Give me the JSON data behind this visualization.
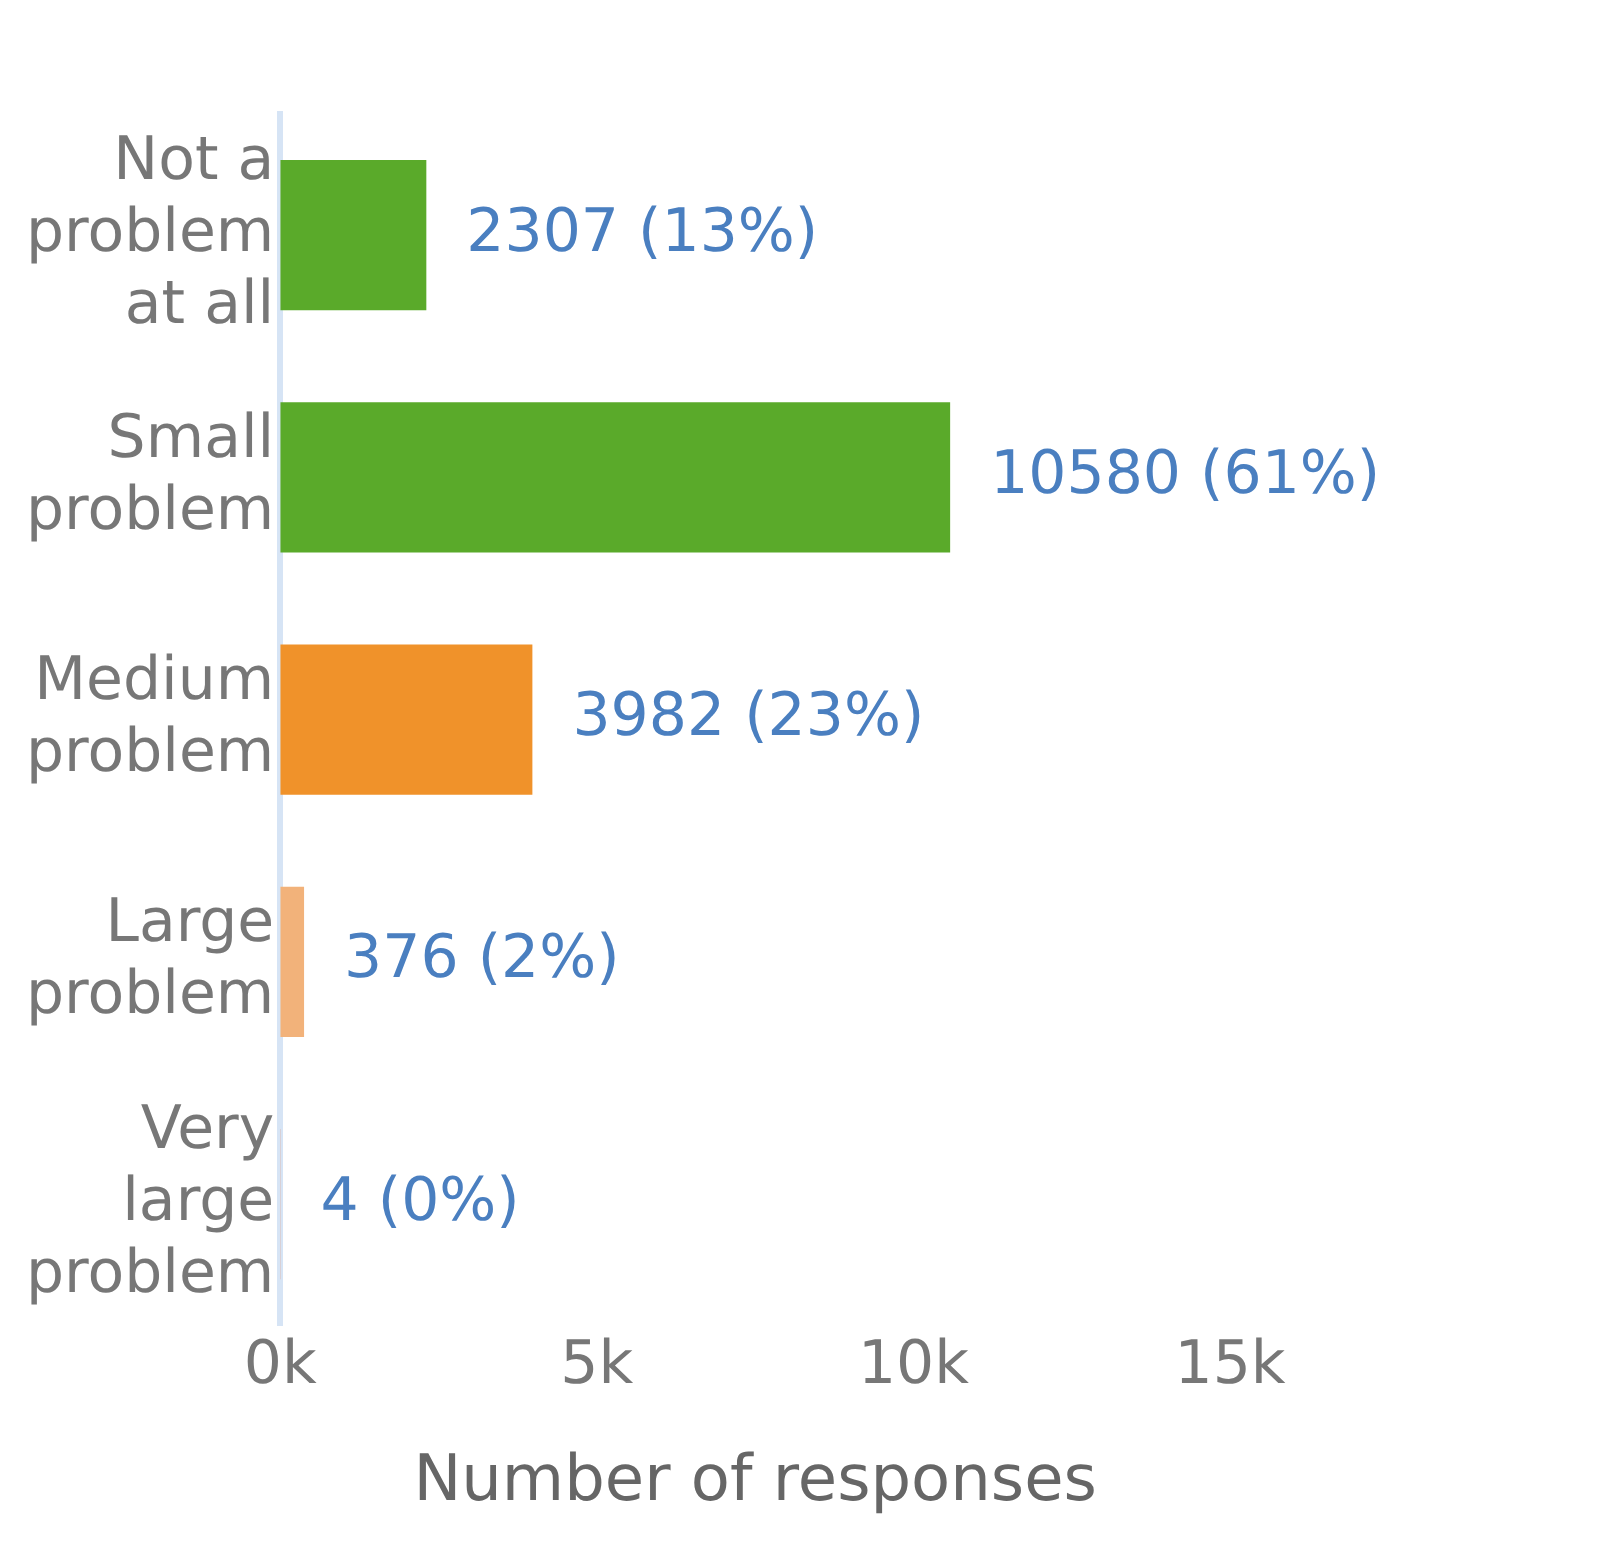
{
  "chart_data": {
    "type": "bar",
    "orientation": "horizontal",
    "xlabel": "Number of responses",
    "categories": [
      "Not a problem at all",
      "Small problem",
      "Medium problem",
      "Large problem",
      "Very large problem"
    ],
    "values": [
      2307,
      10580,
      3982,
      376,
      4
    ],
    "colors": [
      "#5aaa2a",
      "#5aaa2a",
      "#f0922a",
      "#f2b27a",
      "#e8774a"
    ],
    "value_labels": [
      "2307 (13%)",
      "10580 (61%)",
      "3982 (23%)",
      "376 (2%)",
      "4 (0%)"
    ],
    "xlim": [
      0,
      15000
    ],
    "xticks": [
      {
        "value": 0,
        "label": "0k"
      },
      {
        "value": 5000,
        "label": "5k"
      },
      {
        "value": 10000,
        "label": "10k"
      },
      {
        "value": 15000,
        "label": "15k"
      }
    ],
    "grid": false,
    "legend": false
  }
}
